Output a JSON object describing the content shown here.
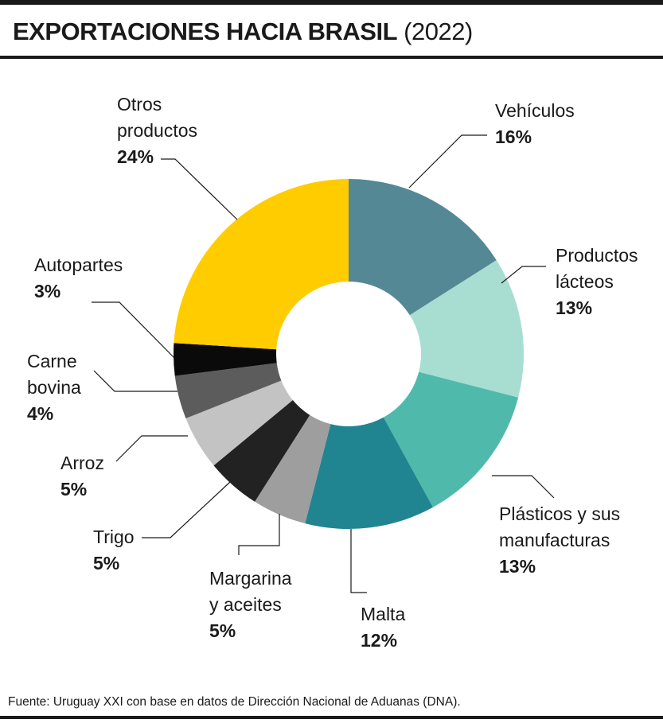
{
  "header": {
    "title_main": "EXPORTACIONES HACIA BRASIL",
    "title_year": "(2022)"
  },
  "source": "Fuente: Uruguay XXI con base en datos de Dirección Nacional de Aduanas (DNA).",
  "chart_data": {
    "type": "pie",
    "style": "donut",
    "title": "EXPORTACIONES HACIA BRASIL (2022)",
    "unit": "%",
    "legend": "none (labels beside slices with leader lines)",
    "slices": [
      {
        "label_lines": [
          "Vehículos"
        ],
        "value": 16,
        "value_label": "16%",
        "color": "#548895"
      },
      {
        "label_lines": [
          "Productos",
          "lácteos"
        ],
        "value": 13,
        "value_label": "13%",
        "color": "#a8ddd1"
      },
      {
        "label_lines": [
          "Plásticos y sus",
          "manufacturas"
        ],
        "value": 13,
        "value_label": "13%",
        "color": "#4fbaab"
      },
      {
        "label_lines": [
          "Malta"
        ],
        "value": 12,
        "value_label": "12%",
        "color": "#218491"
      },
      {
        "label_lines": [
          "Margarina",
          "y aceites"
        ],
        "value": 5,
        "value_label": "5%",
        "color": "#9e9e9e"
      },
      {
        "label_lines": [
          "Trigo"
        ],
        "value": 5,
        "value_label": "5%",
        "color": "#222222"
      },
      {
        "label_lines": [
          "Arroz"
        ],
        "value": 5,
        "value_label": "5%",
        "color": "#c3c3c3"
      },
      {
        "label_lines": [
          "Carne",
          "bovina"
        ],
        "value": 4,
        "value_label": "4%",
        "color": "#5c5c5c"
      },
      {
        "label_lines": [
          "Autopartes"
        ],
        "value": 3,
        "value_label": "3%",
        "color": "#0a0a0a"
      },
      {
        "label_lines": [
          "Otros",
          "productos"
        ],
        "value": 24,
        "value_label": "24%",
        "color": "#ffcc00"
      }
    ]
  }
}
